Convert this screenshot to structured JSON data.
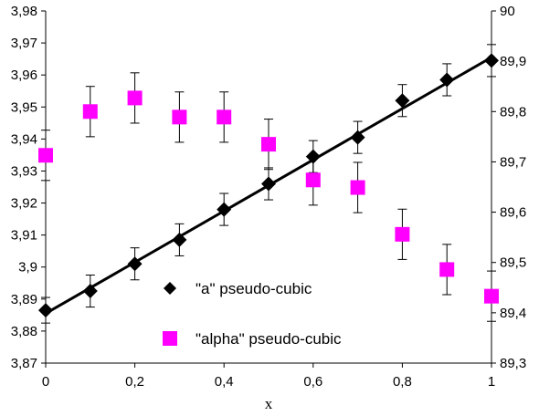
{
  "chart_data": {
    "type": "scatter",
    "title": "",
    "xlabel": "x",
    "ylabel": "",
    "ylabel_right": "",
    "xlim": [
      0,
      1
    ],
    "ylim_left": [
      3.87,
      3.98
    ],
    "ylim_right": [
      89.3,
      90
    ],
    "x_ticks": [
      "0",
      "0,2",
      "0,4",
      "0,6",
      "0,8",
      "1"
    ],
    "y_left_ticks": [
      "3,87",
      "3,88",
      "3,89",
      "3,9",
      "3,91",
      "3,92",
      "3,93",
      "3,94",
      "3,95",
      "3,96",
      "3,97",
      "3,98"
    ],
    "y_right_ticks": [
      "89,3",
      "89,4",
      "89,5",
      "89,6",
      "89,7",
      "89,8",
      "89,9",
      "90"
    ],
    "grid": false,
    "legend_position": "lower-center",
    "series": [
      {
        "name": "\"a\" pseudo-cubic",
        "axis": "left",
        "marker": "diamond",
        "color": "#000000",
        "x": [
          0,
          0.1,
          0.2,
          0.3,
          0.4,
          0.5,
          0.6,
          0.7,
          0.8,
          0.9,
          1.0
        ],
        "y": [
          3.8865,
          3.8925,
          3.901,
          3.9085,
          3.918,
          3.926,
          3.9345,
          3.9405,
          3.952,
          3.9585,
          3.9645
        ],
        "error": [
          0.004,
          0.005,
          0.005,
          0.005,
          0.005,
          0.005,
          0.005,
          0.005,
          0.005,
          0.005,
          0.005
        ]
      },
      {
        "name": "\"alpha\" pseudo-cubic",
        "axis": "right",
        "marker": "square",
        "color": "#ff00ff",
        "x": [
          0,
          0.1,
          0.2,
          0.3,
          0.4,
          0.5,
          0.6,
          0.7,
          0.8,
          0.9,
          1.0
        ],
        "y": [
          89.713,
          89.8,
          89.827,
          89.789,
          89.789,
          89.735,
          89.664,
          89.649,
          89.556,
          89.486,
          89.433
        ],
        "error": [
          0.05,
          0.05,
          0.05,
          0.05,
          0.05,
          0.05,
          0.05,
          0.05,
          0.05,
          0.05,
          0.05
        ]
      }
    ],
    "fit_line": {
      "axis": "left",
      "color": "#000000",
      "x": [
        0,
        1
      ],
      "y": [
        3.8855,
        3.9655
      ]
    },
    "legend": [
      {
        "label": "\"a\" pseudo-cubic",
        "marker": "diamond",
        "color": "#000000"
      },
      {
        "label": "\"alpha\" pseudo-cubic",
        "marker": "square",
        "color": "#ff00ff"
      }
    ]
  }
}
